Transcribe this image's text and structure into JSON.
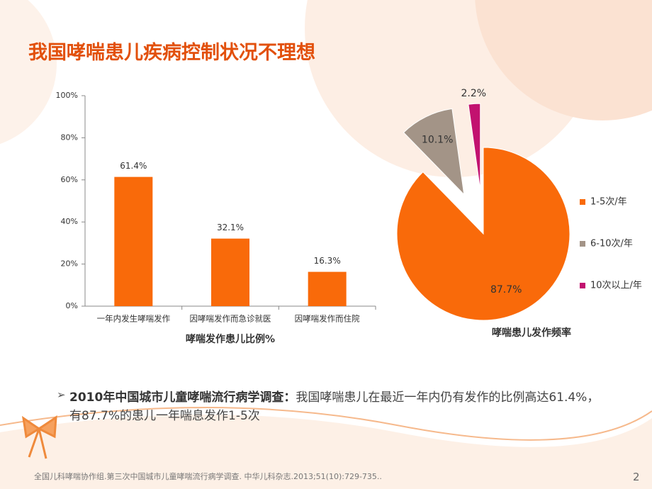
{
  "slide_title": "我国哮喘患儿疾病控制状况不理想",
  "chart_data": [
    {
      "type": "bar",
      "x_label": "哮喘发作患儿比例%",
      "categories": [
        "一年内发生哮喘发作",
        "因哮喘发作而急诊就医",
        "因哮喘发作而住院"
      ],
      "values": [
        61.4,
        32.1,
        16.3
      ],
      "value_labels": [
        "61.4%",
        "32.1%",
        "16.3%"
      ],
      "color": "#f96a0a",
      "ylim": [
        0,
        100
      ],
      "yticks": [
        {
          "value": 0,
          "label": "0%"
        },
        {
          "value": 20,
          "label": "20%"
        },
        {
          "value": 40,
          "label": "40%"
        },
        {
          "value": 60,
          "label": "60%"
        },
        {
          "value": 80,
          "label": "80%"
        },
        {
          "value": 100,
          "label": "100%"
        }
      ]
    },
    {
      "type": "pie",
      "title": "哮喘患儿发作频率",
      "categories": [
        "1-5次/年",
        "6-10次/年",
        "10次以上/年"
      ],
      "values": [
        87.7,
        10.1,
        2.2
      ],
      "value_labels": [
        "87.7%",
        "10.1%",
        "2.2%"
      ],
      "colors": [
        "#f96a0a",
        "#a39487",
        "#c2126f"
      ]
    }
  ],
  "bullet": {
    "lead": "2010年中国城市儿童哮喘流行病学调查：",
    "text": "我国哮喘患儿在最近一年内仍有发作的比例高达61.4%，有87.7%的患儿一年喘息发作1-5次"
  },
  "footnote": "全国儿科哮喘协作组.第三次中国城市儿童哮喘流行病学调查. 中华儿科杂志.2013;51(10):729-735..",
  "page_number": "2"
}
